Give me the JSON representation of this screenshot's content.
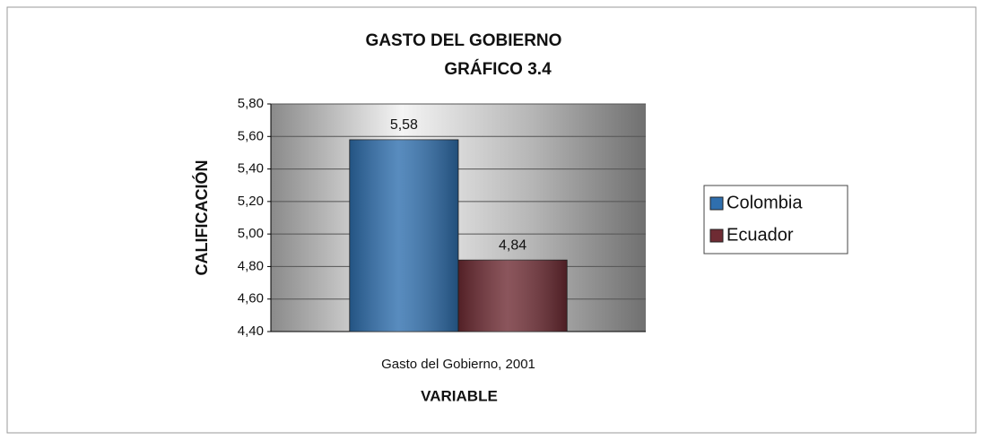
{
  "chart_data": {
    "type": "bar",
    "title": "GASTO DEL GOBIERNO",
    "subtitle": "GRÁFICO 3.4",
    "y_label": "CALIFICACIÓN",
    "x_label": "VARIABLE",
    "categories": [
      "Gasto del Gobierno, 2001"
    ],
    "series": [
      {
        "name": "Colombia",
        "color": "#2f6fae",
        "values": [
          5.58
        ],
        "value_labels": [
          "5,58"
        ]
      },
      {
        "name": "Ecuador",
        "color": "#6e2b33",
        "values": [
          4.84
        ],
        "value_labels": [
          "4,84"
        ]
      }
    ],
    "ylim": [
      4.4,
      5.8
    ],
    "yticks": [
      {
        "value": 4.4,
        "label": "4,40"
      },
      {
        "value": 4.6,
        "label": "4,60"
      },
      {
        "value": 4.8,
        "label": "4,80"
      },
      {
        "value": 5.0,
        "label": "5,00"
      },
      {
        "value": 5.2,
        "label": "5,20"
      },
      {
        "value": 5.4,
        "label": "5,40"
      },
      {
        "value": 5.6,
        "label": "5,60"
      },
      {
        "value": 5.8,
        "label": "5,80"
      }
    ],
    "grid": true,
    "legend": "right"
  }
}
